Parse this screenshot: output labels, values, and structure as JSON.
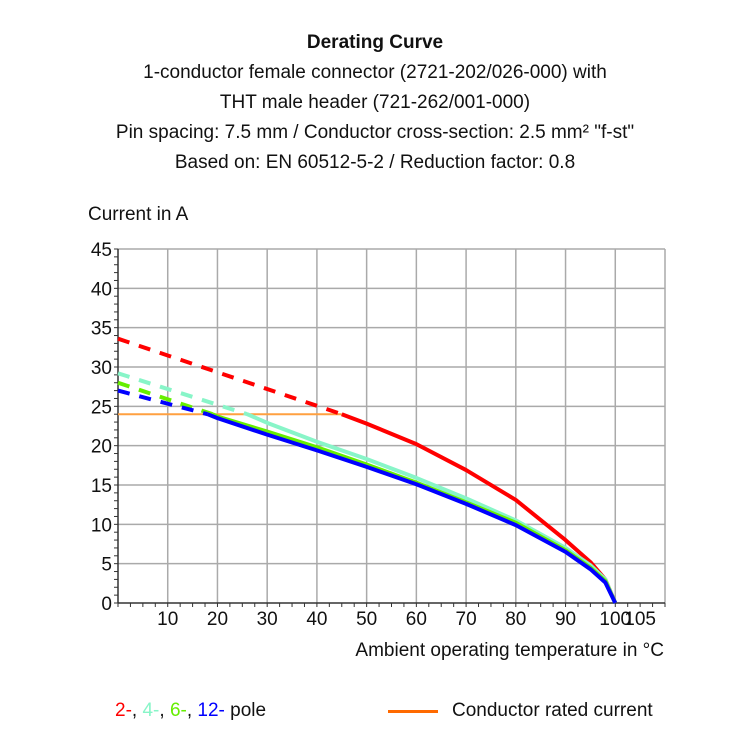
{
  "chart_data": {
    "type": "line",
    "title": "Derating Curve",
    "subtitle": [
      "1-conductor female connector (2721-202/026-000) with",
      "THT male header (721-262/001-000)",
      "Pin spacing: 7.5 mm / Conductor cross-section: 2.5 mm² \"f-st\"",
      "Based on: EN 60512-5-2 / Reduction factor: 0.8"
    ],
    "xlabel": "Ambient operating temperature in °C",
    "ylabel": "Current in A",
    "xlim": [
      0,
      110
    ],
    "ylim": [
      0,
      45
    ],
    "xticks": [
      10,
      20,
      30,
      40,
      50,
      60,
      70,
      80,
      90,
      100,
      105
    ],
    "yticks": [
      0,
      5,
      10,
      15,
      20,
      25,
      30,
      35,
      40,
      45
    ],
    "grid": true,
    "series": [
      {
        "color": "#ff0000",
        "dashed_until": 45,
        "points": [
          [
            0,
            33.6
          ],
          [
            45,
            24
          ],
          [
            50,
            22.8
          ],
          [
            60,
            20.2
          ],
          [
            70,
            16.9
          ],
          [
            80,
            13.1
          ],
          [
            90,
            8
          ],
          [
            95,
            5.2
          ],
          [
            98,
            3
          ],
          [
            100,
            0
          ]
        ]
      },
      {
        "color": "#88f5c8",
        "dashed_until": 26,
        "points": [
          [
            0,
            29.2
          ],
          [
            26,
            24
          ],
          [
            30,
            22.9
          ],
          [
            40,
            20.5
          ],
          [
            50,
            18.3
          ],
          [
            60,
            15.9
          ],
          [
            70,
            13.3
          ],
          [
            80,
            10.5
          ],
          [
            90,
            7
          ],
          [
            95,
            4.8
          ],
          [
            98,
            3
          ],
          [
            100,
            0
          ]
        ]
      },
      {
        "color": "#66ee00",
        "dashed_until": 19,
        "points": [
          [
            0,
            28
          ],
          [
            19,
            24
          ],
          [
            20,
            23.7
          ],
          [
            30,
            21.8
          ],
          [
            40,
            19.8
          ],
          [
            50,
            17.6
          ],
          [
            60,
            15.3
          ],
          [
            70,
            12.8
          ],
          [
            80,
            10.2
          ],
          [
            90,
            6.7
          ],
          [
            95,
            4.5
          ],
          [
            98,
            2.8
          ],
          [
            100,
            0
          ]
        ]
      },
      {
        "color": "#0000ff",
        "dashed_until": 18,
        "points": [
          [
            0,
            27
          ],
          [
            18,
            24
          ],
          [
            20,
            23.5
          ],
          [
            30,
            21.4
          ],
          [
            40,
            19.4
          ],
          [
            50,
            17.3
          ],
          [
            60,
            15.1
          ],
          [
            70,
            12.6
          ],
          [
            80,
            9.9
          ],
          [
            90,
            6.5
          ],
          [
            95,
            4.3
          ],
          [
            98,
            2.6
          ],
          [
            100,
            0
          ]
        ]
      }
    ],
    "rated_current": {
      "name": "Conductor rated current",
      "color": "#ffa040",
      "legend_color": "#ff6a00",
      "value": 24,
      "x_range": [
        0,
        45
      ]
    },
    "legend": {
      "poles": [
        {
          "text": "2-",
          "color": "#ff0000"
        },
        {
          "text": ", ",
          "color": "#111111"
        },
        {
          "text": "4-",
          "color": "#88f5c8"
        },
        {
          "text": ", ",
          "color": "#111111"
        },
        {
          "text": "6-",
          "color": "#66ee00"
        },
        {
          "text": ", ",
          "color": "#111111"
        },
        {
          "text": "12-",
          "color": "#0000ff"
        },
        {
          "text": " pole",
          "color": "#111111"
        }
      ],
      "placement": "bottom"
    }
  }
}
